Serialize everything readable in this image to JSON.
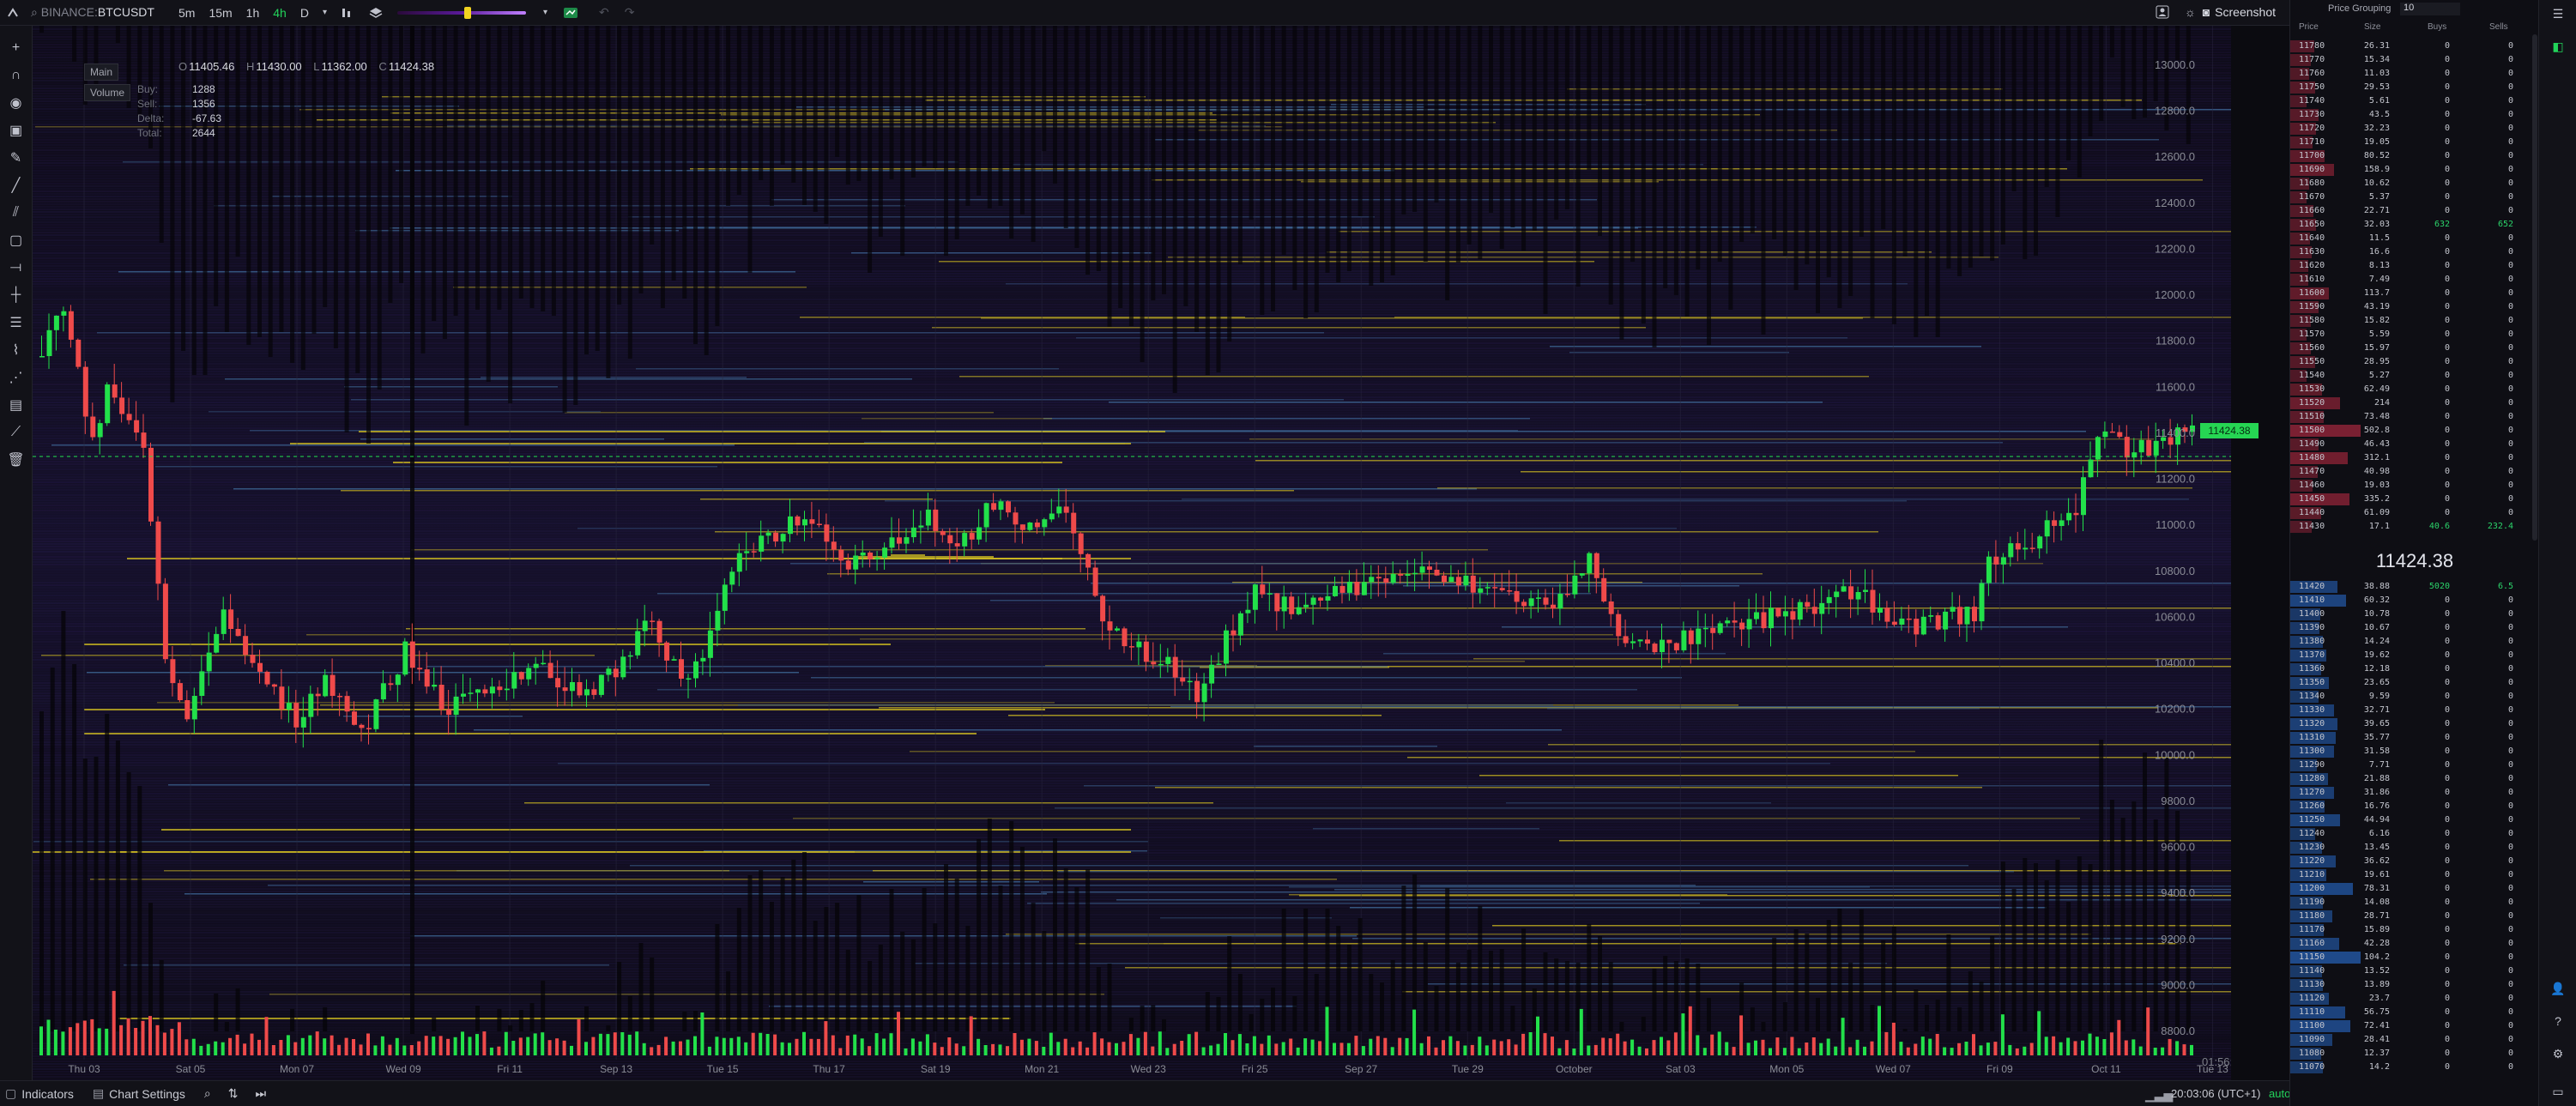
{
  "toolbar": {
    "exchange": "BINANCE",
    "pair": "BTCUSDT",
    "timeframes": [
      {
        "label": "5m",
        "active": false
      },
      {
        "label": "15m",
        "active": false
      },
      {
        "label": "1h",
        "active": false
      },
      {
        "label": "4h",
        "active": true
      },
      {
        "label": "D",
        "active": false
      }
    ],
    "opacity_level": 0.55,
    "screenshot_label": "Screenshot",
    "icons": [
      "menu-icon",
      "search-icon",
      "chevron-down-icon",
      "bar-chart-icon",
      "layers-icon",
      "chevron-down-icon",
      "heatmap-icon",
      "undo-icon",
      "redo-icon",
      "user-icon",
      "sun-icon",
      "camera-icon",
      "hamburger-icon"
    ]
  },
  "legend": {
    "main_label": "Main",
    "volume_label": "Volume",
    "ohlc": {
      "o": "11405.46",
      "h": "11430.00",
      "l": "11362.00",
      "c": "11424.38"
    },
    "volume_stats": [
      {
        "k": "Buy:",
        "v": "1288"
      },
      {
        "k": "Sell:",
        "v": "1356"
      },
      {
        "k": "Delta:",
        "v": "-67.63"
      },
      {
        "k": "Total:",
        "v": "2644"
      }
    ]
  },
  "price_label": "11424.38",
  "countdown": "01:56:53",
  "bottom": {
    "indicators": "Indicators",
    "chart_settings": "Chart Settings",
    "clock": "20:03:06 (UTC+1)",
    "auto": "auto"
  },
  "chart_data": {
    "type": "candlestick",
    "price_axis": {
      "min": 8800,
      "max": 13000,
      "labels": [
        "13000.0",
        "12800.0",
        "12600.0",
        "12400.0",
        "12200.0",
        "12000.0",
        "11800.0",
        "11600.0",
        "11400.0",
        "11200.0",
        "11000.0",
        "10800.0",
        "10600.0",
        "10400.0",
        "10200.0",
        "10000.0",
        "9800.0",
        "9600.0",
        "9400.0",
        "9200.0",
        "9000.0",
        "8800.0"
      ]
    },
    "date_labels": [
      "Thu 03",
      "Sat 05",
      "Mon 07",
      "Wed 09",
      "Fri 11",
      "Sep 13",
      "Tue 15",
      "Thu 17",
      "Sat 19",
      "Mon 21",
      "Wed 23",
      "Fri 25",
      "Sep 27",
      "Tue 29",
      "October",
      "Sat 03",
      "Mon 05",
      "Wed 07",
      "Fri 09",
      "Oct 11",
      "Tue 13"
    ],
    "close_anchors": [
      [
        0,
        11700
      ],
      [
        4,
        11950
      ],
      [
        8,
        11850
      ],
      [
        14,
        11350
      ],
      [
        18,
        11600
      ],
      [
        24,
        11450
      ],
      [
        28,
        11300
      ],
      [
        34,
        10450
      ],
      [
        40,
        10150
      ],
      [
        50,
        10600
      ],
      [
        56,
        10450
      ],
      [
        62,
        10300
      ],
      [
        70,
        10150
      ],
      [
        78,
        10350
      ],
      [
        88,
        10100
      ],
      [
        100,
        10450
      ],
      [
        112,
        10200
      ],
      [
        124,
        10300
      ],
      [
        136,
        10400
      ],
      [
        148,
        10250
      ],
      [
        160,
        10400
      ],
      [
        168,
        10600
      ],
      [
        176,
        10300
      ],
      [
        184,
        10500
      ],
      [
        192,
        10900
      ],
      [
        200,
        10950
      ],
      [
        210,
        11050
      ],
      [
        222,
        10850
      ],
      [
        232,
        10900
      ],
      [
        244,
        11050
      ],
      [
        252,
        10900
      ],
      [
        262,
        11100
      ],
      [
        270,
        10950
      ],
      [
        280,
        11100
      ],
      [
        286,
        10900
      ],
      [
        290,
        10650
      ],
      [
        298,
        10500
      ],
      [
        310,
        10400
      ],
      [
        318,
        10250
      ],
      [
        326,
        10500
      ],
      [
        334,
        10700
      ],
      [
        342,
        10650
      ],
      [
        354,
        10700
      ],
      [
        366,
        10750
      ],
      [
        376,
        10800
      ],
      [
        390,
        10750
      ],
      [
        404,
        10700
      ],
      [
        414,
        10650
      ],
      [
        420,
        10700
      ],
      [
        426,
        10850
      ],
      [
        434,
        10550
      ],
      [
        442,
        10450
      ],
      [
        452,
        10500
      ],
      [
        464,
        10550
      ],
      [
        476,
        10600
      ],
      [
        488,
        10650
      ],
      [
        498,
        10700
      ],
      [
        506,
        10650
      ],
      [
        514,
        10550
      ],
      [
        524,
        10600
      ],
      [
        532,
        10620
      ],
      [
        536,
        10850
      ],
      [
        546,
        10900
      ],
      [
        552,
        11000
      ],
      [
        560,
        11050
      ],
      [
        566,
        11420
      ],
      [
        574,
        11330
      ],
      [
        584,
        11360
      ],
      [
        592,
        11424
      ]
    ],
    "candle_count": 593,
    "volume_seed": 7
  },
  "orderbook": {
    "price_grouping_label": "Price Grouping",
    "price_grouping_value": "10",
    "headers": {
      "price": "Price",
      "size": "Size",
      "buys": "Buys",
      "sells": "Sells"
    },
    "mid_price": "11424.38",
    "asks": [
      {
        "p": "11780",
        "s": "26.31",
        "b": "0",
        "e": "0"
      },
      {
        "p": "11770",
        "s": "15.34",
        "b": "0",
        "e": "0"
      },
      {
        "p": "11760",
        "s": "11.03",
        "b": "0",
        "e": "0"
      },
      {
        "p": "11750",
        "s": "29.53",
        "b": "0",
        "e": "0"
      },
      {
        "p": "11740",
        "s": "5.61",
        "b": "0",
        "e": "0"
      },
      {
        "p": "11730",
        "s": "43.5",
        "b": "0",
        "e": "0"
      },
      {
        "p": "11720",
        "s": "32.23",
        "b": "0",
        "e": "0"
      },
      {
        "p": "11710",
        "s": "19.05",
        "b": "0",
        "e": "0"
      },
      {
        "p": "11700",
        "s": "80.52",
        "b": "0",
        "e": "0"
      },
      {
        "p": "11690",
        "s": "158.9",
        "b": "0",
        "e": "0"
      },
      {
        "p": "11680",
        "s": "10.62",
        "b": "0",
        "e": "0"
      },
      {
        "p": "11670",
        "s": "5.37",
        "b": "0",
        "e": "0"
      },
      {
        "p": "11660",
        "s": "22.71",
        "b": "0",
        "e": "0"
      },
      {
        "p": "11650",
        "s": "32.03",
        "b": "632",
        "e": "652"
      },
      {
        "p": "11640",
        "s": "11.5",
        "b": "0",
        "e": "0"
      },
      {
        "p": "11630",
        "s": "16.6",
        "b": "0",
        "e": "0"
      },
      {
        "p": "11620",
        "s": "8.13",
        "b": "0",
        "e": "0"
      },
      {
        "p": "11610",
        "s": "7.49",
        "b": "0",
        "e": "0"
      },
      {
        "p": "11600",
        "s": "113.7",
        "b": "0",
        "e": "0"
      },
      {
        "p": "11590",
        "s": "43.19",
        "b": "0",
        "e": "0"
      },
      {
        "p": "11580",
        "s": "15.82",
        "b": "0",
        "e": "0"
      },
      {
        "p": "11570",
        "s": "5.59",
        "b": "0",
        "e": "0"
      },
      {
        "p": "11560",
        "s": "15.97",
        "b": "0",
        "e": "0"
      },
      {
        "p": "11550",
        "s": "28.95",
        "b": "0",
        "e": "0"
      },
      {
        "p": "11540",
        "s": "5.27",
        "b": "0",
        "e": "0"
      },
      {
        "p": "11530",
        "s": "62.49",
        "b": "0",
        "e": "0"
      },
      {
        "p": "11520",
        "s": "214",
        "b": "0",
        "e": "0"
      },
      {
        "p": "11510",
        "s": "73.48",
        "b": "0",
        "e": "0"
      },
      {
        "p": "11500",
        "s": "502.8",
        "b": "0",
        "e": "0"
      },
      {
        "p": "11490",
        "s": "46.43",
        "b": "0",
        "e": "0"
      },
      {
        "p": "11480",
        "s": "312.1",
        "b": "0",
        "e": "0"
      },
      {
        "p": "11470",
        "s": "40.98",
        "b": "0",
        "e": "0"
      },
      {
        "p": "11460",
        "s": "19.03",
        "b": "0",
        "e": "0"
      },
      {
        "p": "11450",
        "s": "335.2",
        "b": "0",
        "e": "0"
      },
      {
        "p": "11440",
        "s": "61.09",
        "b": "0",
        "e": "0"
      },
      {
        "p": "11430",
        "s": "17.1",
        "b": "40.6",
        "e": "232.4"
      }
    ],
    "bids": [
      {
        "p": "11420",
        "s": "38.88",
        "b": "5020",
        "e": "6.5"
      },
      {
        "p": "11410",
        "s": "60.32",
        "b": "0",
        "e": "0"
      },
      {
        "p": "11400",
        "s": "10.78",
        "b": "0",
        "e": "0"
      },
      {
        "p": "11390",
        "s": "10.67",
        "b": "0",
        "e": "0"
      },
      {
        "p": "11380",
        "s": "14.24",
        "b": "0",
        "e": "0"
      },
      {
        "p": "11370",
        "s": "19.62",
        "b": "0",
        "e": "0"
      },
      {
        "p": "11360",
        "s": "12.18",
        "b": "0",
        "e": "0"
      },
      {
        "p": "11350",
        "s": "23.65",
        "b": "0",
        "e": "0"
      },
      {
        "p": "11340",
        "s": "9.59",
        "b": "0",
        "e": "0"
      },
      {
        "p": "11330",
        "s": "32.71",
        "b": "0",
        "e": "0"
      },
      {
        "p": "11320",
        "s": "39.65",
        "b": "0",
        "e": "0"
      },
      {
        "p": "11310",
        "s": "35.77",
        "b": "0",
        "e": "0"
      },
      {
        "p": "11300",
        "s": "31.58",
        "b": "0",
        "e": "0"
      },
      {
        "p": "11290",
        "s": "7.71",
        "b": "0",
        "e": "0"
      },
      {
        "p": "11280",
        "s": "21.88",
        "b": "0",
        "e": "0"
      },
      {
        "p": "11270",
        "s": "31.86",
        "b": "0",
        "e": "0"
      },
      {
        "p": "11260",
        "s": "16.76",
        "b": "0",
        "e": "0"
      },
      {
        "p": "11250",
        "s": "44.94",
        "b": "0",
        "e": "0"
      },
      {
        "p": "11240",
        "s": "6.16",
        "b": "0",
        "e": "0"
      },
      {
        "p": "11230",
        "s": "13.45",
        "b": "0",
        "e": "0"
      },
      {
        "p": "11220",
        "s": "36.62",
        "b": "0",
        "e": "0"
      },
      {
        "p": "11210",
        "s": "19.61",
        "b": "0",
        "e": "0"
      },
      {
        "p": "11200",
        "s": "78.31",
        "b": "0",
        "e": "0"
      },
      {
        "p": "11190",
        "s": "14.08",
        "b": "0",
        "e": "0"
      },
      {
        "p": "11180",
        "s": "28.71",
        "b": "0",
        "e": "0"
      },
      {
        "p": "11170",
        "s": "15.89",
        "b": "0",
        "e": "0"
      },
      {
        "p": "11160",
        "s": "42.28",
        "b": "0",
        "e": "0"
      },
      {
        "p": "11150",
        "s": "104.2",
        "b": "0",
        "e": "0"
      },
      {
        "p": "11140",
        "s": "13.52",
        "b": "0",
        "e": "0"
      },
      {
        "p": "11130",
        "s": "13.89",
        "b": "0",
        "e": "0"
      },
      {
        "p": "11120",
        "s": "23.7",
        "b": "0",
        "e": "0"
      },
      {
        "p": "11110",
        "s": "56.75",
        "b": "0",
        "e": "0"
      },
      {
        "p": "11100",
        "s": "72.41",
        "b": "0",
        "e": "0"
      },
      {
        "p": "11090",
        "s": "28.41",
        "b": "0",
        "e": "0"
      },
      {
        "p": "11080",
        "s": "12.37",
        "b": "0",
        "e": "0"
      },
      {
        "p": "11070",
        "s": "14.2",
        "b": "0",
        "e": "0"
      }
    ]
  },
  "colors": {
    "up": "#22e04a",
    "down": "#ef4a4a",
    "bid_bar": "#1f4a8a",
    "ask_bar": "#7a2032",
    "accent": "#22d35a"
  }
}
